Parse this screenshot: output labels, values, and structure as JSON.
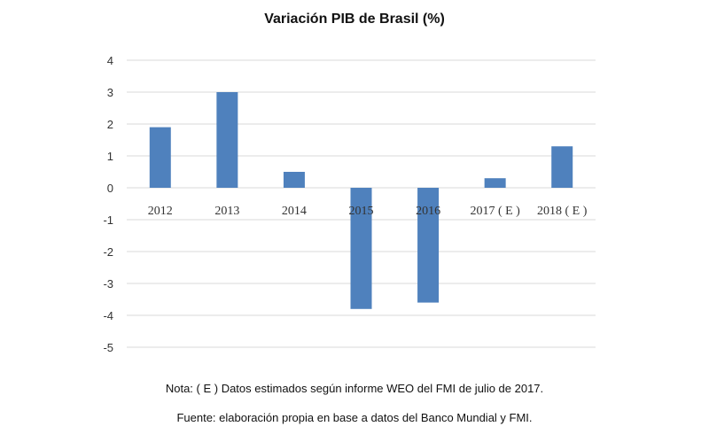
{
  "chart_data": {
    "type": "bar",
    "title": "Variación PIB de Brasil (%)",
    "categories": [
      "2012",
      "2013",
      "2014",
      "2015",
      "2016",
      "2017 ( E )",
      "2018 ( E )"
    ],
    "values": [
      1.9,
      3.0,
      0.5,
      -3.8,
      -3.6,
      0.3,
      1.3
    ],
    "ylim": [
      -5,
      4
    ],
    "yticks": [
      "4",
      "3",
      "2",
      "1",
      "0",
      "-1",
      "-2",
      "-3",
      "-4",
      "-5"
    ],
    "grid": true,
    "legend": "none",
    "bar_color": "#4f81bd"
  },
  "notes": {
    "nota": "Nota: ( E ) Datos estimados según informe WEO del FMI de julio de 2017.",
    "fuente": "Fuente: elaboración propia en base a datos del Banco Mundial y FMI."
  }
}
